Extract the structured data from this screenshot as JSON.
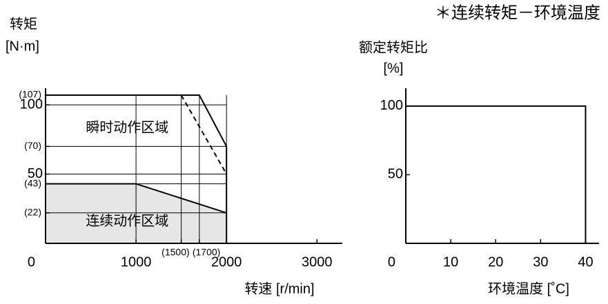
{
  "chart_data": [
    {
      "type": "area",
      "ylabel": "转矩",
      "yunit": "[N·m]",
      "xlabel": "转速 [r/min]",
      "xlim": [
        0,
        3280
      ],
      "ylim": [
        0,
        112
      ],
      "xticks": [
        0,
        1000,
        {
          "value": 1500,
          "label": "(1500)"
        },
        {
          "value": 1700,
          "label": "(1700)"
        },
        2000,
        3000
      ],
      "yticks": [
        {
          "value": 107,
          "label": "(107)"
        },
        100,
        {
          "value": 70,
          "label": "(70)"
        },
        50,
        {
          "value": 43,
          "label": "(43)"
        },
        {
          "value": 22,
          "label": "(22)"
        }
      ],
      "grid": true,
      "series": [
        {
          "name": "瞬时动作区域",
          "color": "#000000",
          "x": [
            0,
            1700,
            2000,
            2000
          ],
          "values": [
            107,
            107,
            70,
            0
          ]
        },
        {
          "color": "#000000",
          "dashed": true,
          "x": [
            1500,
            2000
          ],
          "values": [
            107,
            50
          ]
        },
        {
          "name": "连续动作区域",
          "color": "#000000",
          "fill": "#e6e6e6",
          "x": [
            0,
            1000,
            2000
          ],
          "values": [
            43,
            43,
            22
          ]
        }
      ]
    },
    {
      "type": "line",
      "title": "＊连续转矩－环境温度",
      "ylabel": "额定转矩比",
      "yunit": "[%]",
      "xlabel": "环境温度 [˚C]",
      "xlim": [
        0,
        43
      ],
      "ylim": [
        0,
        113
      ],
      "xticks": [
        0,
        10,
        20,
        30,
        40
      ],
      "yticks": [
        100,
        50
      ],
      "grid": false,
      "series": [
        {
          "color": "#000000",
          "x": [
            0,
            40,
            40
          ],
          "values": [
            100,
            100,
            0
          ]
        }
      ]
    }
  ]
}
